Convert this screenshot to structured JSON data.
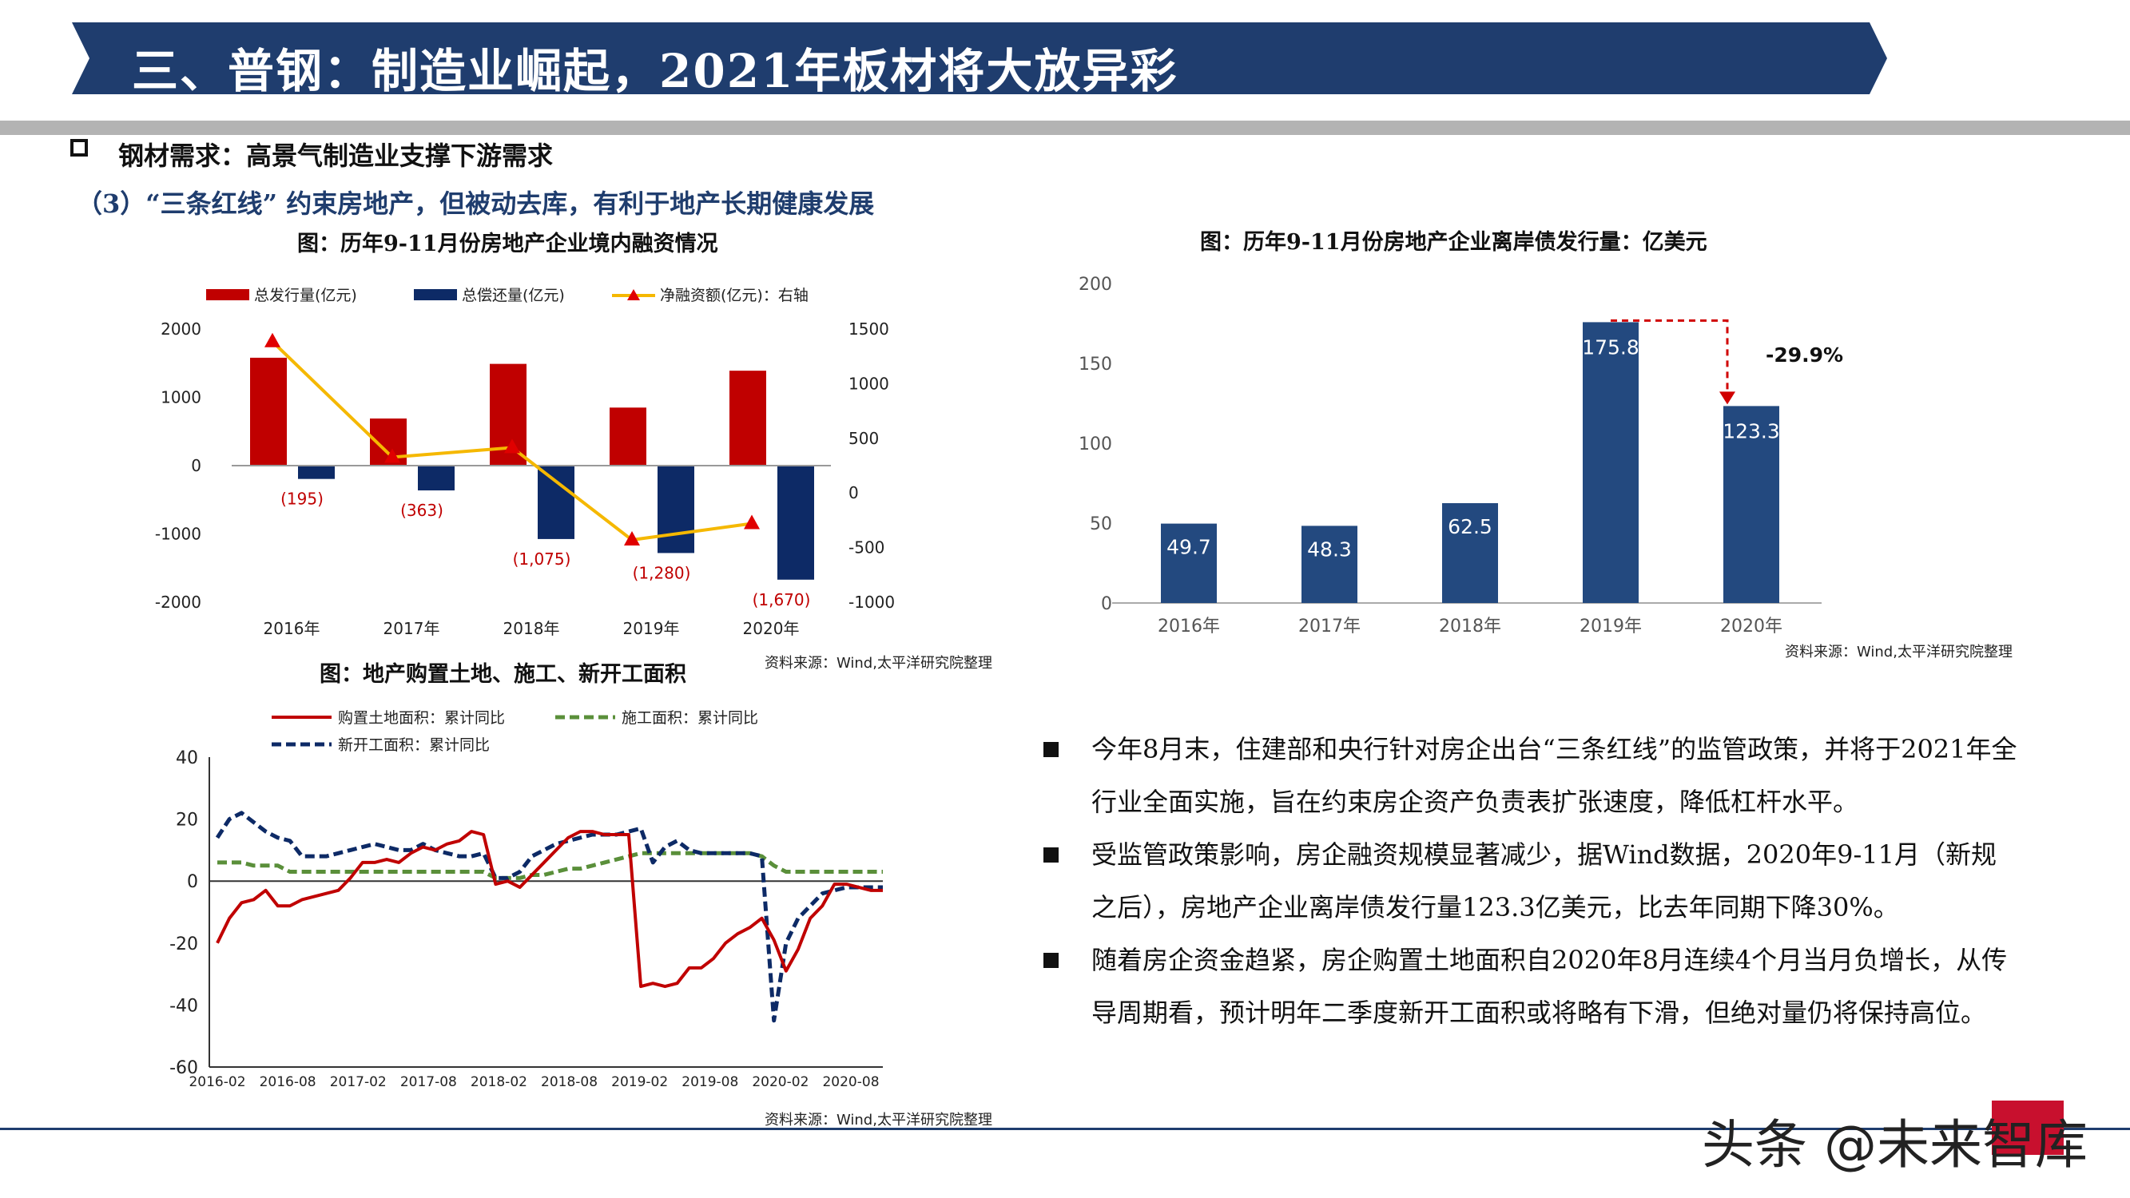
{
  "header": {
    "title": "三、普钢：制造业崛起，2021年板材将大放异彩"
  },
  "section": {
    "heading": "钢材需求：高景气制造业支撑下游需求",
    "subheading": "（3）“三条红线” 约束房地产，但被动去库，有利于地产长期健康发展"
  },
  "colors": {
    "banner": "#1f3d6e",
    "red": "#c00000",
    "navy": "#0d2a66",
    "gold": "#f5b800",
    "green": "#5a8f3a",
    "blue_bar": "#23497f"
  },
  "chart_data": [
    {
      "type": "bar",
      "title": "图：历年9-11月份房地产企业境内融资情况",
      "categories": [
        "2016年",
        "2017年",
        "2018年",
        "2019年",
        "2020年"
      ],
      "series": [
        {
          "name": "总发行量(亿元)",
          "kind": "bar",
          "axis": "left",
          "color": "#c00000",
          "values": [
            1580,
            690,
            1490,
            850,
            1390
          ]
        },
        {
          "name": "总偿还量(亿元)",
          "kind": "bar",
          "axis": "left",
          "color": "#0d2a66",
          "values": [
            -195,
            -363,
            -1075,
            -1280,
            -1670
          ],
          "labels": [
            "(195)",
            "(363)",
            "(1,075)",
            "(1,280)",
            "(1,670)"
          ]
        },
        {
          "name": "净融资额(亿元)：右轴",
          "kind": "line",
          "axis": "right",
          "color": "#f5b800",
          "values": [
            1385,
            327,
            415,
            -430,
            -280
          ]
        }
      ],
      "y_left": {
        "min": -2000,
        "max": 2000,
        "ticks": [
          "2000",
          "1000",
          "0",
          "-1000",
          "-2000"
        ]
      },
      "y_right": {
        "min": -1000,
        "max": 1500,
        "ticks": [
          "1500",
          "1000",
          "500",
          "0",
          "-500",
          "-1000"
        ]
      },
      "source": "资料来源：Wind,太平洋研究院整理"
    },
    {
      "type": "bar",
      "title": "图：历年9-11月份房地产企业离岸债发行量：亿美元",
      "categories": [
        "2016年",
        "2017年",
        "2018年",
        "2019年",
        "2020年"
      ],
      "values": [
        49.7,
        48.3,
        62.5,
        175.8,
        123.3
      ],
      "labels": [
        "49.7",
        "48.3",
        "62.5",
        "175.8",
        "123.3"
      ],
      "ylim": [
        0,
        200
      ],
      "yticks": [
        "200",
        "150",
        "100",
        "50",
        "0"
      ],
      "annotation": "-29.9%",
      "source": "资料来源：Wind,太平洋研究院整理"
    },
    {
      "type": "line",
      "title": "图：地产购置土地、施工、新开工面积",
      "x_ticks": [
        "2016-02",
        "2016-08",
        "2017-02",
        "2017-08",
        "2018-02",
        "2018-08",
        "2019-02",
        "2019-08",
        "2020-02",
        "2020-08"
      ],
      "ylim": [
        -60,
        40
      ],
      "yticks": [
        "40",
        "20",
        "0",
        "-20",
        "-40",
        "-60"
      ],
      "series": [
        {
          "name": "购置土地面积：累计同比",
          "color": "#c00000",
          "style": "solid",
          "values": [
            -20,
            -12,
            -7,
            -6,
            -3,
            -8,
            -8,
            -6,
            -5,
            -4,
            -3,
            1,
            6,
            6,
            7,
            6,
            9,
            11,
            10,
            12,
            13,
            16,
            15,
            -1,
            0,
            -2,
            2,
            6,
            10,
            14,
            16,
            16,
            15,
            15,
            15,
            -34,
            -33,
            -34,
            -33,
            -28,
            -28,
            -25,
            -20,
            -17,
            -15,
            -12,
            -19,
            -29,
            -22,
            -12,
            -8,
            -1,
            -1,
            -2,
            -3,
            -3
          ]
        },
        {
          "name": "施工面积：累计同比",
          "color": "#5a8f3a",
          "style": "dash",
          "values": [
            6,
            6,
            6,
            5,
            5,
            5,
            3,
            3,
            3,
            3,
            3,
            3,
            3,
            3,
            3,
            3,
            3,
            3,
            3,
            3,
            3,
            3,
            3,
            1,
            1,
            1,
            2,
            2,
            3,
            4,
            4,
            5,
            6,
            7,
            8,
            9,
            9,
            9,
            9,
            9,
            9,
            9,
            9,
            9,
            9,
            8,
            5,
            3,
            3,
            3,
            3,
            3,
            3,
            3,
            3,
            3
          ]
        },
        {
          "name": "新开工面积：累计同比",
          "color": "#0d2a66",
          "style": "dash",
          "values": [
            14,
            20,
            22,
            19,
            16,
            14,
            13,
            8,
            8,
            8,
            9,
            10,
            11,
            12,
            11,
            10,
            10,
            12,
            10,
            9,
            8,
            8,
            9,
            1,
            1,
            3,
            8,
            10,
            12,
            13,
            14,
            15,
            15,
            15,
            16,
            17,
            6,
            11,
            13,
            10,
            9,
            9,
            9,
            9,
            9,
            8,
            -45,
            -20,
            -12,
            -8,
            -4,
            -3,
            -2,
            -2,
            -2,
            -2
          ]
        }
      ],
      "source": "资料来源：Wind,太平洋研究院整理"
    }
  ],
  "bullets": [
    "今年8月末，住建部和央行针对房企出台“三条红线”的监管政策，并将于2021年全行业全面实施，旨在约束房企资产负责表扩张速度，降低杠杆水平。",
    "受监管政策影响，房企融资规模显著减少，据Wind数据，2020年9-11月（新规之后），房地产企业离岸债发行量123.3亿美元，比去年同期下降30%。",
    "随着房企资金趋紧，房企购置土地面积自2020年8月连续4个月当月负增长，从传导周期看，预计明年二季度新开工面积或将略有下滑，但绝对量仍将保持高位。"
  ],
  "watermark": {
    "text": "头条 @未来智库"
  }
}
